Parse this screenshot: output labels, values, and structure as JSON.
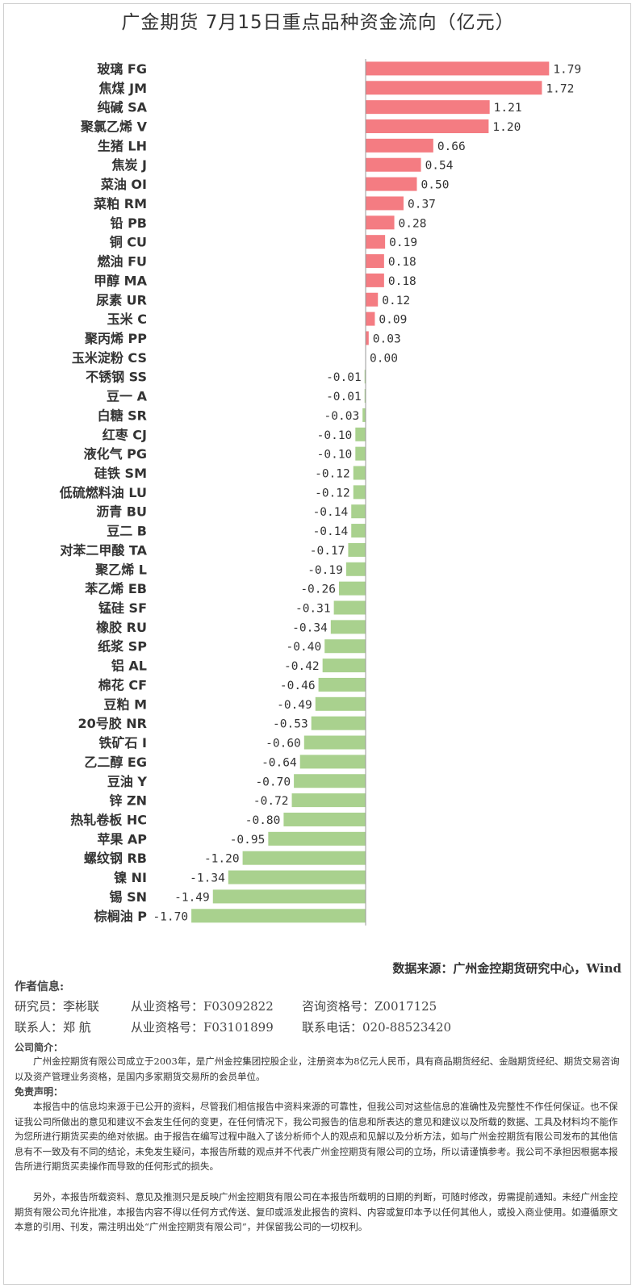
{
  "chart_data": {
    "type": "bar",
    "orientation": "horizontal",
    "title": "广金期货 7月15日重点品种资金流向（亿元）",
    "categories": [
      "玻璃 FG",
      "焦煤 JM",
      "纯碱 SA",
      "聚氯乙烯 V",
      "生猪 LH",
      "焦炭 J",
      "菜油 OI",
      "菜粕 RM",
      "铅 PB",
      "铜 CU",
      "燃油 FU",
      "甲醇 MA",
      "尿素 UR",
      "玉米 C",
      "聚丙烯 PP",
      "玉米淀粉 CS",
      "不锈钢 SS",
      "豆一 A",
      "白糖 SR",
      "红枣 CJ",
      "液化气 PG",
      "硅铁 SM",
      "低硫燃料油 LU",
      "沥青 BU",
      "豆二 B",
      "对苯二甲酸 TA",
      "聚乙烯 L",
      "苯乙烯 EB",
      "锰硅 SF",
      "橡胶 RU",
      "纸浆 SP",
      "铝 AL",
      "棉花 CF",
      "豆粕 M",
      "20号胶 NR",
      "铁矿石 I",
      "乙二醇 EG",
      "豆油 Y",
      "锌 ZN",
      "热轧卷板 HC",
      "苹果 AP",
      "螺纹钢 RB",
      "镍 NI",
      "锡 SN",
      "棕榈油 P"
    ],
    "values": [
      1.79,
      1.72,
      1.21,
      1.2,
      0.66,
      0.54,
      0.5,
      0.37,
      0.28,
      0.19,
      0.18,
      0.18,
      0.12,
      0.09,
      0.03,
      0.0,
      -0.01,
      -0.01,
      -0.03,
      -0.1,
      -0.1,
      -0.12,
      -0.12,
      -0.14,
      -0.14,
      -0.17,
      -0.19,
      -0.26,
      -0.31,
      -0.34,
      -0.4,
      -0.42,
      -0.46,
      -0.49,
      -0.53,
      -0.6,
      -0.64,
      -0.7,
      -0.72,
      -0.8,
      -0.95,
      -1.2,
      -1.34,
      -1.49,
      -1.7
    ],
    "value_labels": [
      "1.79",
      "1.72",
      "1.21",
      "1.20",
      "0.66",
      "0.54",
      "0.50",
      "0.37",
      "0.28",
      "0.19",
      "0.18",
      "0.18",
      "0.12",
      "0.09",
      "0.03",
      "0.00",
      "-0.01",
      "-0.01",
      "-0.03",
      "-0.10",
      "-0.10",
      "-0.12",
      "-0.12",
      "-0.14",
      "-0.14",
      "-0.17",
      "-0.19",
      "-0.26",
      "-0.31",
      "-0.34",
      "-0.40",
      "-0.42",
      "-0.46",
      "-0.49",
      "-0.53",
      "-0.60",
      "-0.64",
      "-0.70",
      "-0.72",
      "-0.80",
      "-0.95",
      "-1.20",
      "-1.34",
      "-1.49",
      "-1.70"
    ],
    "xlim": [
      -1.78,
      1.88
    ],
    "grid": false,
    "colors": {
      "positive": "#f47c82",
      "negative": "#a9d18e",
      "axis": "#999999"
    }
  },
  "source_text": "数据来源：广州金控期货研究中心，Wind",
  "author": {
    "heading": "作者信息:",
    "researcher_label": "研究员：李彬联",
    "researcher_cert": "从业资格号：F03092822",
    "researcher_consult": "咨询资格号：Z0017125",
    "contact_label": "联系人：郑 航",
    "contact_cert": "从业资格号：F03101899",
    "contact_phone": "联系电话：020-88523420"
  },
  "company": {
    "heading": "公司简介：",
    "text": "广州金控期货有限公司成立于2003年，是广州金控集团控股企业，注册资本为8亿元人民币，具有商品期货经纪、金融期货经纪、期货交易咨询以及资产管理业务资格，是国内多家期货交易所的会员单位。"
  },
  "disclaimer": {
    "heading": "免责声明：",
    "p1": "本报告中的信息均来源于已公开的资料，尽管我们相信报告中资料来源的可靠性，但我公司对这些信息的准确性及完整性不作任何保证。也不保证我公司所做出的意见和建议不会发生任何的变更，在任何情况下，我公司报告的信息和所表达的意见和建议以及所载的数据、工具及材料均不能作为您所进行期货买卖的绝对依据。由于报告在编写过程中融入了该分析师个人的观点和见解以及分析方法，如与广州金控期货有限公司发布的其他信息有不一致及有不同的结论，未免发生疑问，本报告所载的观点并不代表广州金控期货有限公司的立场，所以请谨慎参考。我公司不承担因根据本报告所进行期货买卖操作而导致的任何形式的损失。",
    "p2": "另外，本报告所载资料、意见及推测只是反映广州金控期货有限公司在本报告所载明的日期的判断，可随时修改，毋需提前通知。未经广州金控期货有限公司允许批准，本报告内容不得以任何方式传送、复印或派发此报告的资料、内容或复印本予以任何其他人，或投入商业使用。如遵循原文本意的引用、刊发，需注明出处“广州金控期货有限公司”，并保留我公司的一切权利。"
  }
}
